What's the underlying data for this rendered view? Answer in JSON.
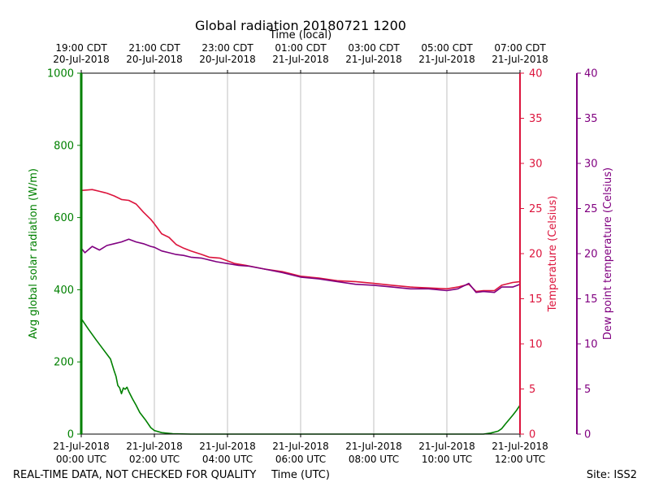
{
  "chart_data": {
    "type": "line",
    "title": "Global radiation 20180721 1200",
    "top_axis_label": "Time (local)",
    "xlabel": "Time (UTC)",
    "footer_left": "REAL-TIME DATA, NOT CHECKED FOR QUALITY",
    "footer_right": "Site: ISS2",
    "x_range_hours": [
      0,
      12
    ],
    "x_ticks": [
      {
        "hour": 0,
        "line1": "21-Jul-2018",
        "line2": "00:00 UTC"
      },
      {
        "hour": 2,
        "line1": "21-Jul-2018",
        "line2": "02:00 UTC"
      },
      {
        "hour": 4,
        "line1": "21-Jul-2018",
        "line2": "04:00 UTC"
      },
      {
        "hour": 6,
        "line1": "21-Jul-2018",
        "line2": "06:00 UTC"
      },
      {
        "hour": 8,
        "line1": "21-Jul-2018",
        "line2": "08:00 UTC"
      },
      {
        "hour": 10,
        "line1": "21-Jul-2018",
        "line2": "10:00 UTC"
      },
      {
        "hour": 12,
        "line1": "21-Jul-2018",
        "line2": "12:00 UTC"
      }
    ],
    "top_ticks": [
      {
        "hour": 0,
        "line1": "19:00 CDT",
        "line2": "20-Jul-2018"
      },
      {
        "hour": 2,
        "line1": "21:00 CDT",
        "line2": "20-Jul-2018"
      },
      {
        "hour": 4,
        "line1": "23:00 CDT",
        "line2": "20-Jul-2018"
      },
      {
        "hour": 6,
        "line1": "01:00 CDT",
        "line2": "21-Jul-2018"
      },
      {
        "hour": 8,
        "line1": "03:00 CDT",
        "line2": "21-Jul-2018"
      },
      {
        "hour": 10,
        "line1": "05:00 CDT",
        "line2": "21-Jul-2018"
      },
      {
        "hour": 12,
        "line1": "07:00 CDT",
        "line2": "21-Jul-2018"
      }
    ],
    "grid": "vertical",
    "axes": {
      "radiation": {
        "label": "Avg global solar radiation (W/m)",
        "ylim": [
          0,
          1000
        ],
        "ticks": [
          0,
          200,
          400,
          600,
          800,
          1000
        ],
        "color": "#008000"
      },
      "temperature": {
        "label": "Temperature (Celsius)",
        "ylim": [
          0,
          40
        ],
        "ticks": [
          0,
          5,
          10,
          15,
          20,
          25,
          30,
          35,
          40
        ],
        "color": "#dc143c"
      },
      "dewpoint": {
        "label": "Dew point temperature (Celsius)",
        "ylim": [
          0,
          40
        ],
        "ticks": [
          0,
          5,
          10,
          15,
          20,
          25,
          30,
          35,
          40
        ],
        "color": "#800080"
      }
    },
    "series": [
      {
        "axis": "radiation",
        "color": "#008000",
        "points": [
          [
            0,
            320
          ],
          [
            0.2,
            290
          ],
          [
            0.4,
            262
          ],
          [
            0.6,
            235
          ],
          [
            0.8,
            208
          ],
          [
            0.9,
            175
          ],
          [
            0.95,
            160
          ],
          [
            1.0,
            135
          ],
          [
            1.05,
            128
          ],
          [
            1.1,
            112
          ],
          [
            1.15,
            128
          ],
          [
            1.2,
            124
          ],
          [
            1.25,
            130
          ],
          [
            1.3,
            118
          ],
          [
            1.4,
            98
          ],
          [
            1.5,
            80
          ],
          [
            1.6,
            60
          ],
          [
            1.75,
            40
          ],
          [
            1.9,
            18
          ],
          [
            2.0,
            10
          ],
          [
            2.2,
            4
          ],
          [
            2.5,
            1
          ],
          [
            3,
            0
          ],
          [
            4,
            0
          ],
          [
            6,
            0
          ],
          [
            8,
            0
          ],
          [
            10,
            0
          ],
          [
            11.0,
            0
          ],
          [
            11.2,
            3
          ],
          [
            11.4,
            8
          ],
          [
            11.5,
            15
          ],
          [
            11.6,
            28
          ],
          [
            11.7,
            40
          ],
          [
            11.8,
            52
          ],
          [
            11.9,
            65
          ],
          [
            12.0,
            80
          ]
        ]
      },
      {
        "axis": "temperature",
        "color": "#dc143c",
        "points": [
          [
            0,
            27.0
          ],
          [
            0.3,
            27.1
          ],
          [
            0.5,
            26.9
          ],
          [
            0.7,
            26.7
          ],
          [
            0.9,
            26.4
          ],
          [
            1.1,
            26.0
          ],
          [
            1.3,
            25.9
          ],
          [
            1.5,
            25.5
          ],
          [
            1.7,
            24.6
          ],
          [
            1.9,
            23.8
          ],
          [
            2.0,
            23.3
          ],
          [
            2.2,
            22.2
          ],
          [
            2.4,
            21.8
          ],
          [
            2.6,
            21.0
          ],
          [
            2.8,
            20.6
          ],
          [
            3.0,
            20.3
          ],
          [
            3.3,
            19.9
          ],
          [
            3.5,
            19.6
          ],
          [
            3.8,
            19.5
          ],
          [
            4.0,
            19.2
          ],
          [
            4.2,
            18.9
          ],
          [
            4.5,
            18.7
          ],
          [
            5.0,
            18.3
          ],
          [
            5.5,
            18.0
          ],
          [
            6.0,
            17.5
          ],
          [
            6.5,
            17.3
          ],
          [
            7.0,
            17.0
          ],
          [
            7.5,
            16.9
          ],
          [
            8.0,
            16.7
          ],
          [
            8.5,
            16.5
          ],
          [
            9.0,
            16.3
          ],
          [
            9.5,
            16.2
          ],
          [
            10.0,
            16.1
          ],
          [
            10.3,
            16.3
          ],
          [
            10.6,
            16.6
          ],
          [
            10.8,
            15.8
          ],
          [
            11.0,
            15.9
          ],
          [
            11.3,
            15.9
          ],
          [
            11.5,
            16.5
          ],
          [
            11.8,
            16.8
          ],
          [
            12.0,
            16.9
          ]
        ]
      },
      {
        "axis": "dewpoint",
        "color": "#800080",
        "points": [
          [
            0,
            20.6
          ],
          [
            0.1,
            20.1
          ],
          [
            0.3,
            20.8
          ],
          [
            0.5,
            20.4
          ],
          [
            0.7,
            20.9
          ],
          [
            0.9,
            21.1
          ],
          [
            1.1,
            21.3
          ],
          [
            1.3,
            21.6
          ],
          [
            1.5,
            21.3
          ],
          [
            1.7,
            21.1
          ],
          [
            1.9,
            20.8
          ],
          [
            2.0,
            20.7
          ],
          [
            2.2,
            20.3
          ],
          [
            2.4,
            20.1
          ],
          [
            2.6,
            19.9
          ],
          [
            2.8,
            19.8
          ],
          [
            3.0,
            19.6
          ],
          [
            3.3,
            19.5
          ],
          [
            3.5,
            19.3
          ],
          [
            3.7,
            19.1
          ],
          [
            4.0,
            18.9
          ],
          [
            4.3,
            18.7
          ],
          [
            4.6,
            18.6
          ],
          [
            5.0,
            18.3
          ],
          [
            5.5,
            17.9
          ],
          [
            6.0,
            17.4
          ],
          [
            6.5,
            17.2
          ],
          [
            7.0,
            16.9
          ],
          [
            7.5,
            16.6
          ],
          [
            8.0,
            16.5
          ],
          [
            8.5,
            16.3
          ],
          [
            9.0,
            16.1
          ],
          [
            9.5,
            16.1
          ],
          [
            10.0,
            15.9
          ],
          [
            10.3,
            16.1
          ],
          [
            10.6,
            16.7
          ],
          [
            10.8,
            15.7
          ],
          [
            11.0,
            15.8
          ],
          [
            11.3,
            15.7
          ],
          [
            11.5,
            16.3
          ],
          [
            11.8,
            16.3
          ],
          [
            12.0,
            16.6
          ]
        ]
      }
    ]
  }
}
